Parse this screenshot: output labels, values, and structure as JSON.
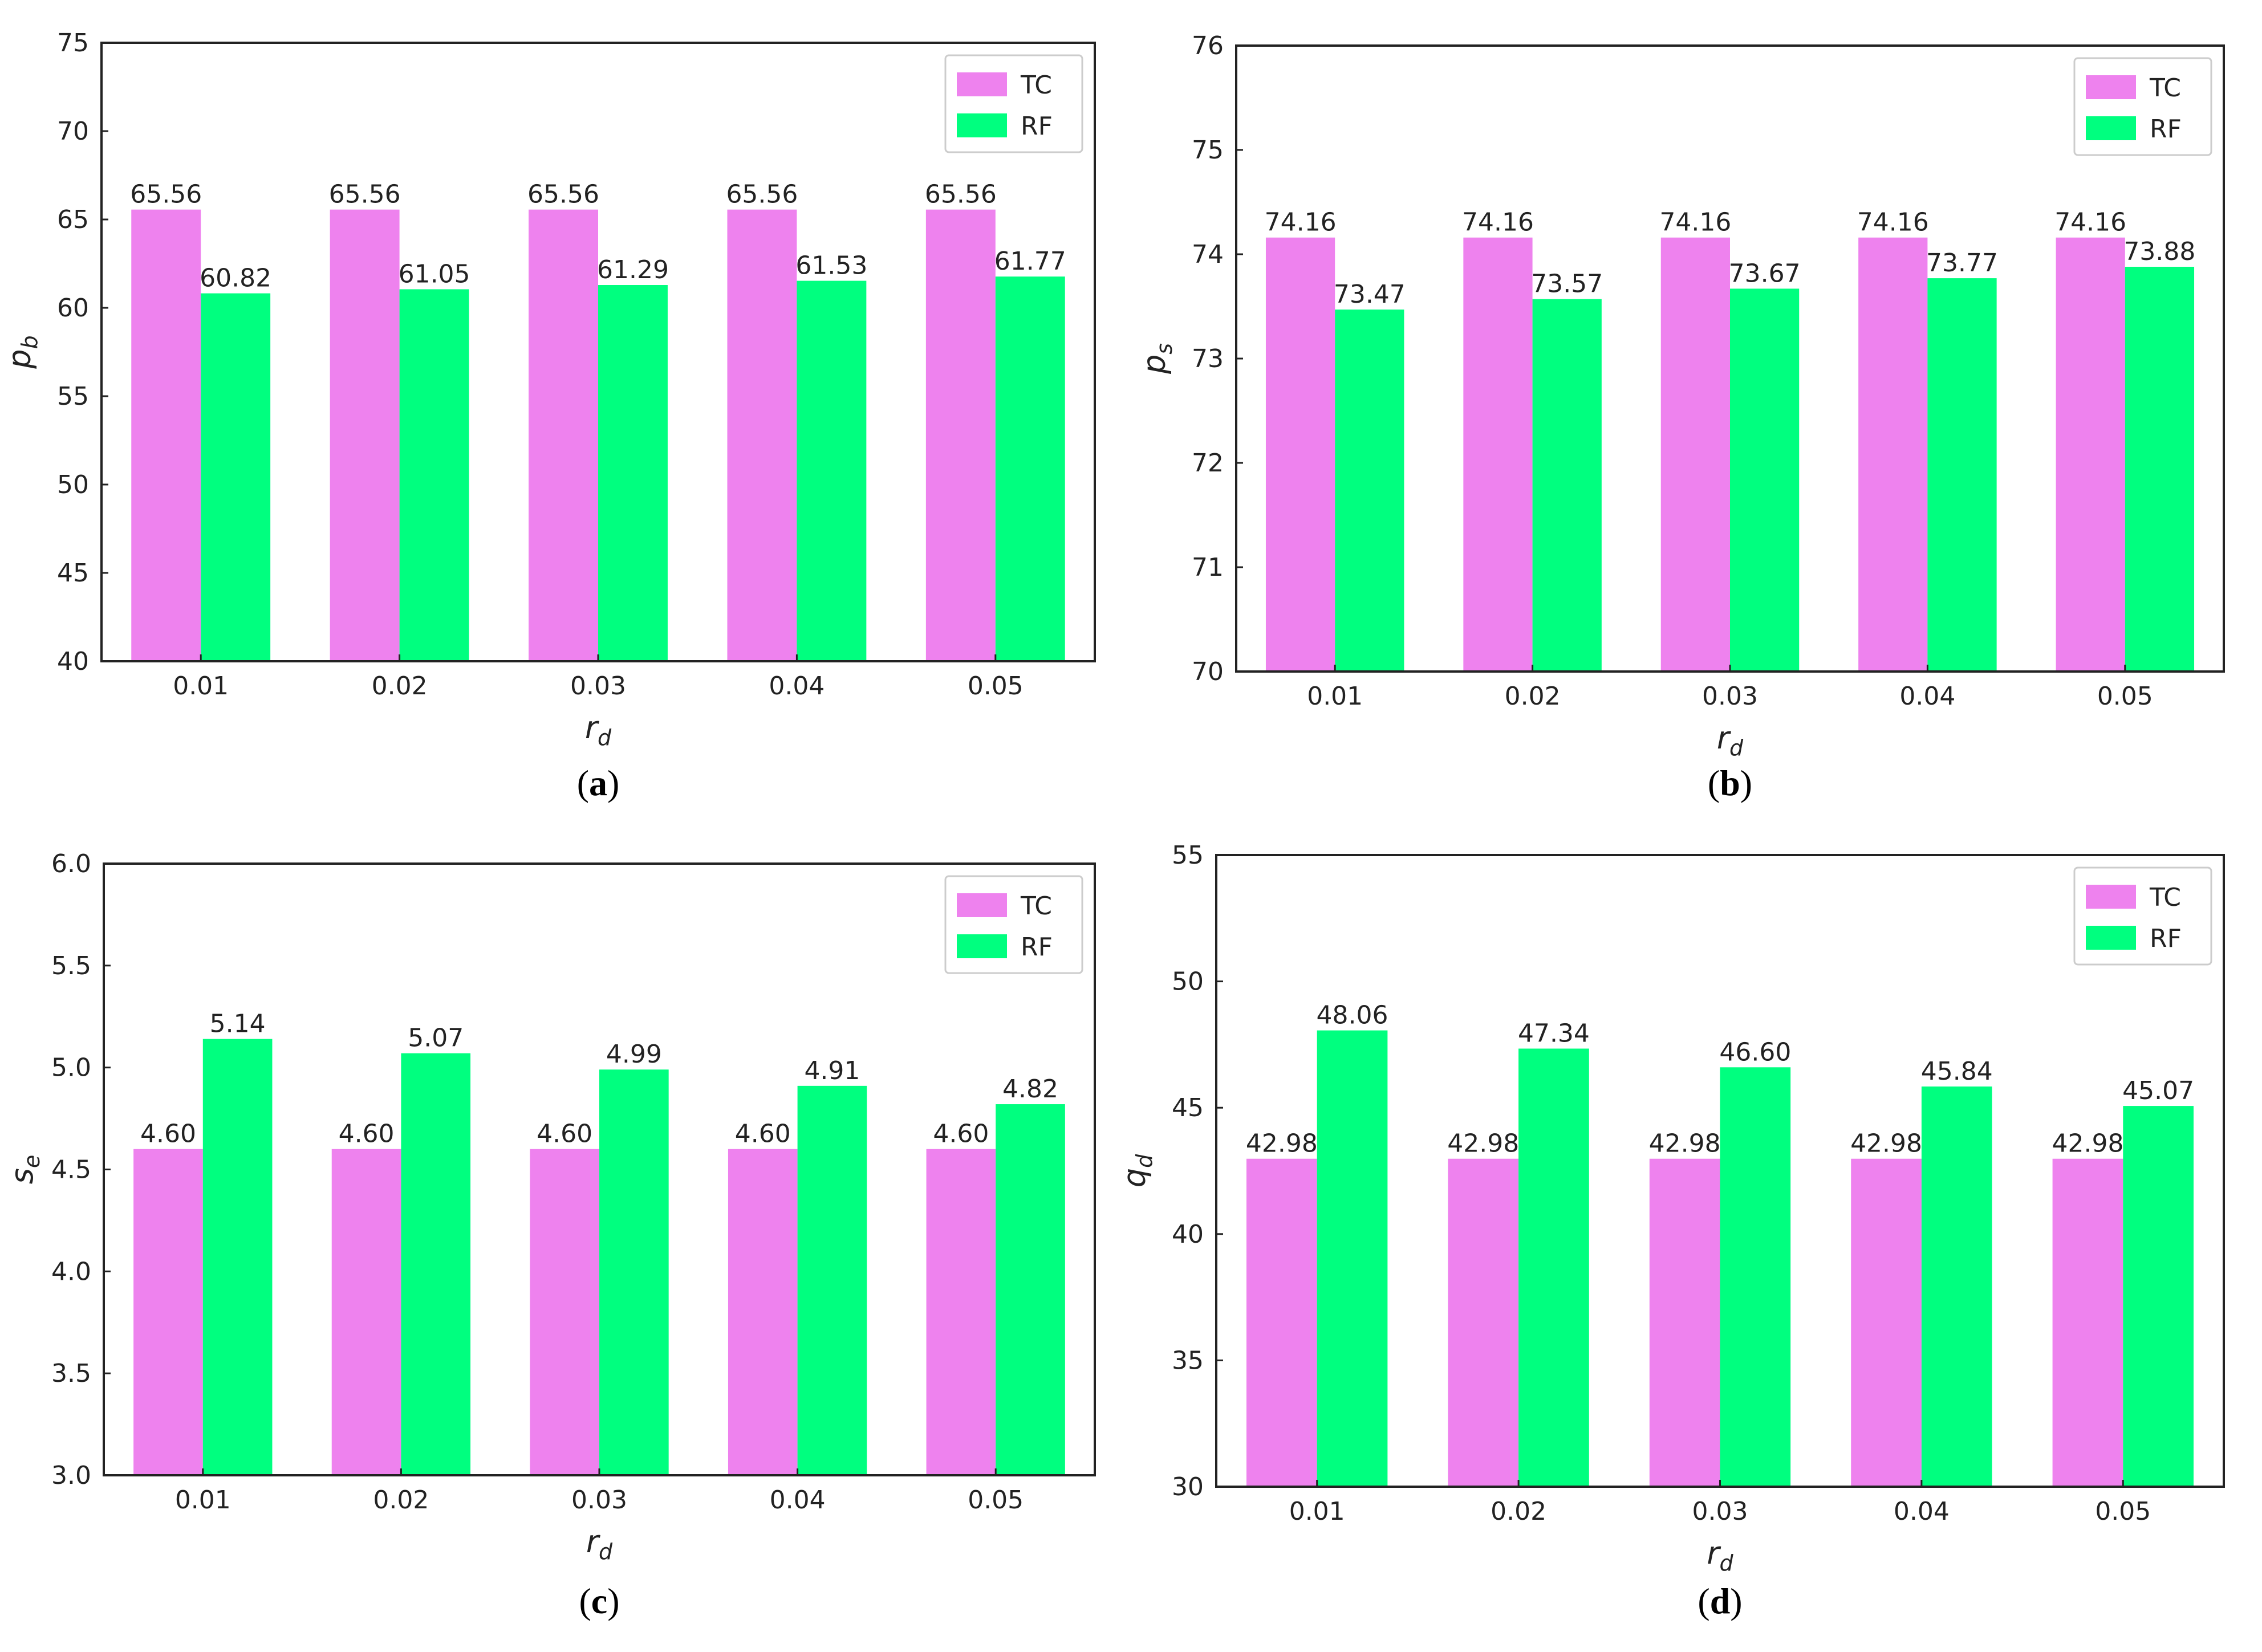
{
  "colors": {
    "TC": "#ee82ee",
    "RF": "#00ff7f",
    "axis": "#222222",
    "text": "#333333"
  },
  "legend": [
    "TC",
    "RF"
  ],
  "chart_data": [
    {
      "id": "a",
      "type": "bar",
      "panel_label": "a",
      "categories": [
        "0.01",
        "0.02",
        "0.03",
        "0.04",
        "0.05"
      ],
      "series": [
        {
          "name": "TC",
          "values": [
            65.56,
            65.56,
            65.56,
            65.56,
            65.56
          ]
        },
        {
          "name": "RF",
          "values": [
            60.82,
            61.05,
            61.29,
            61.53,
            61.77
          ]
        }
      ],
      "value_labels": {
        "TC": [
          "65.56",
          "65.56",
          "65.56",
          "65.56",
          "65.56"
        ],
        "RF": [
          "60.82",
          "61.05",
          "61.29",
          "61.53",
          "61.77"
        ]
      },
      "ylabel": {
        "base": "p",
        "sub": "b"
      },
      "xlabel": {
        "base": "r",
        "sub": "d"
      },
      "ylim": [
        40,
        75
      ],
      "yticks": [
        "40",
        "45",
        "50",
        "55",
        "60",
        "65",
        "70",
        "75"
      ],
      "legend_position": "top-right"
    },
    {
      "id": "b",
      "type": "bar",
      "panel_label": "b",
      "categories": [
        "0.01",
        "0.02",
        "0.03",
        "0.04",
        "0.05"
      ],
      "series": [
        {
          "name": "TC",
          "values": [
            74.16,
            74.16,
            74.16,
            74.16,
            74.16
          ]
        },
        {
          "name": "RF",
          "values": [
            73.47,
            73.57,
            73.67,
            73.77,
            73.88
          ]
        }
      ],
      "value_labels": {
        "TC": [
          "74.16",
          "74.16",
          "74.16",
          "74.16",
          "74.16"
        ],
        "RF": [
          "73.47",
          "73.57",
          "73.67",
          "73.77",
          "73.88"
        ]
      },
      "ylabel": {
        "base": "p",
        "sub": "s"
      },
      "xlabel": {
        "base": "r",
        "sub": "d"
      },
      "ylim": [
        70,
        76
      ],
      "yticks": [
        "70",
        "71",
        "72",
        "73",
        "74",
        "75",
        "76"
      ],
      "legend_position": "top-right"
    },
    {
      "id": "c",
      "type": "bar",
      "panel_label": "c",
      "categories": [
        "0.01",
        "0.02",
        "0.03",
        "0.04",
        "0.05"
      ],
      "series": [
        {
          "name": "TC",
          "values": [
            4.6,
            4.6,
            4.6,
            4.6,
            4.6
          ]
        },
        {
          "name": "RF",
          "values": [
            5.14,
            5.07,
            4.99,
            4.91,
            4.82
          ]
        }
      ],
      "value_labels": {
        "TC": [
          "4.60",
          "4.60",
          "4.60",
          "4.60",
          "4.60"
        ],
        "RF": [
          "5.14",
          "5.07",
          "4.99",
          "4.91",
          "4.82"
        ]
      },
      "ylabel": {
        "base": "s",
        "sub": "e"
      },
      "xlabel": {
        "base": "r",
        "sub": "d"
      },
      "ylim": [
        3.0,
        6.0
      ],
      "yticks": [
        "3.0",
        "3.5",
        "4.0",
        "4.5",
        "5.0",
        "5.5",
        "6.0"
      ],
      "legend_position": "top-right"
    },
    {
      "id": "d",
      "type": "bar",
      "panel_label": "d",
      "categories": [
        "0.01",
        "0.02",
        "0.03",
        "0.04",
        "0.05"
      ],
      "series": [
        {
          "name": "TC",
          "values": [
            42.98,
            42.98,
            42.98,
            42.98,
            42.98
          ]
        },
        {
          "name": "RF",
          "values": [
            48.06,
            47.34,
            46.6,
            45.84,
            45.07
          ]
        }
      ],
      "value_labels": {
        "TC": [
          "42.98",
          "42.98",
          "42.98",
          "42.98",
          "42.98"
        ],
        "RF": [
          "48.06",
          "47.34",
          "46.60",
          "45.84",
          "45.07"
        ]
      },
      "ylabel": {
        "base": "q",
        "sub": "d"
      },
      "xlabel": {
        "base": "r",
        "sub": "d"
      },
      "ylim": [
        30,
        55
      ],
      "yticks": [
        "30",
        "35",
        "40",
        "45",
        "50",
        "55"
      ],
      "legend_position": "top-right"
    }
  ]
}
